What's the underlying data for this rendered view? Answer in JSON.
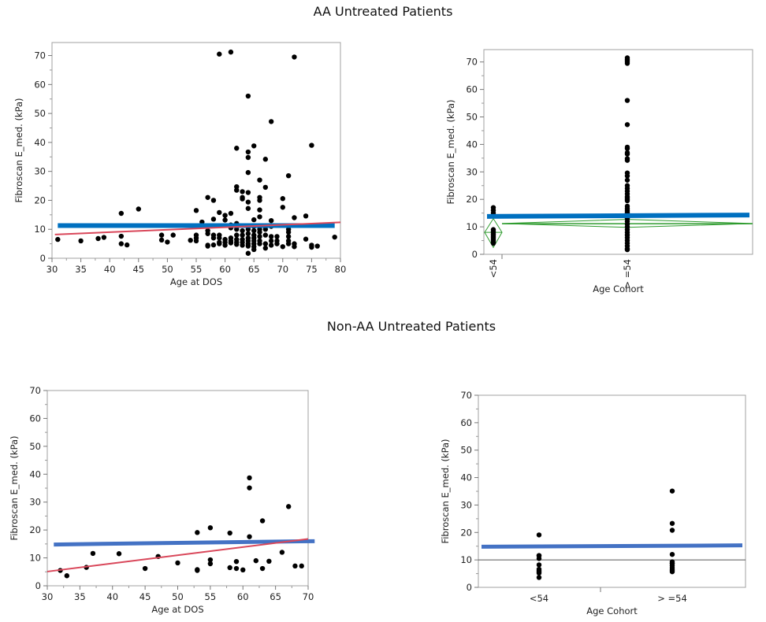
{
  "sections": [
    {
      "title": "AA Untreated Patients"
    },
    {
      "title": "Non-AA Untreated Patients"
    }
  ],
  "colors": {
    "fit_line": "#0070C0",
    "fit_line_b": "#4472C4",
    "regression": "#D9475A",
    "means_diamond": "#2E9B2E",
    "points": "#000000",
    "grid_ref": "#555555"
  },
  "chart_data": [
    {
      "type": "scatter",
      "xlabel": "Age at DOS",
      "ylabel": "Fibroscan E_med. (kPa)",
      "xlim": [
        30,
        80
      ],
      "ylim": [
        0,
        74.5
      ],
      "xticks": [
        30,
        35,
        40,
        45,
        50,
        55,
        60,
        65,
        70,
        75,
        80
      ],
      "yticks": [
        0,
        10,
        20,
        30,
        40,
        50,
        60,
        70
      ],
      "regression_line": {
        "x": [
          30.5,
          80
        ],
        "y": [
          8.2,
          12.4
        ]
      },
      "horizontal_fit": {
        "x": [
          31,
          79
        ],
        "y": [
          11.3,
          11.3
        ]
      },
      "points": [
        [
          31,
          6.5
        ],
        [
          35,
          6
        ],
        [
          38,
          6.8
        ],
        [
          39,
          7.2
        ],
        [
          42,
          15.5
        ],
        [
          42,
          7.6
        ],
        [
          42,
          5
        ],
        [
          43,
          4.6
        ],
        [
          45,
          17
        ],
        [
          49,
          8
        ],
        [
          49,
          6.3
        ],
        [
          50,
          5.6
        ],
        [
          51,
          8
        ],
        [
          54,
          6.2
        ],
        [
          55,
          16.5
        ],
        [
          55,
          8
        ],
        [
          55,
          7
        ],
        [
          55,
          6
        ],
        [
          56,
          12.5
        ],
        [
          57,
          21
        ],
        [
          57,
          9.5
        ],
        [
          57,
          8.5
        ],
        [
          57,
          4.5
        ],
        [
          57,
          4.2
        ],
        [
          58,
          20
        ],
        [
          58,
          13.5
        ],
        [
          58,
          8
        ],
        [
          58,
          7
        ],
        [
          58,
          4.6
        ],
        [
          59,
          70.5
        ],
        [
          59,
          15.8
        ],
        [
          59,
          8
        ],
        [
          59,
          7
        ],
        [
          59,
          5.5
        ],
        [
          59,
          5
        ],
        [
          60,
          14.8
        ],
        [
          60,
          13.2
        ],
        [
          60,
          6.5
        ],
        [
          60,
          5.5
        ],
        [
          60,
          4.5
        ],
        [
          61,
          71.2
        ],
        [
          61,
          15.5
        ],
        [
          61,
          11.5
        ],
        [
          61,
          10.5
        ],
        [
          61,
          7
        ],
        [
          61,
          6
        ],
        [
          61,
          5.3
        ],
        [
          62,
          38
        ],
        [
          62,
          24.7
        ],
        [
          62,
          23.5
        ],
        [
          62,
          12
        ],
        [
          62,
          10
        ],
        [
          62,
          8
        ],
        [
          62,
          6.5
        ],
        [
          62,
          5.5
        ],
        [
          62,
          4.8
        ],
        [
          63,
          23
        ],
        [
          63,
          21
        ],
        [
          63,
          20.5
        ],
        [
          63,
          9.5
        ],
        [
          63,
          8
        ],
        [
          63,
          6.5
        ],
        [
          63,
          5.5
        ],
        [
          63,
          4.5
        ],
        [
          64,
          56
        ],
        [
          64,
          36.7
        ],
        [
          64,
          34.8
        ],
        [
          64,
          29.6
        ],
        [
          64,
          22.7
        ],
        [
          64,
          19.4
        ],
        [
          64,
          17.2
        ],
        [
          64,
          10
        ],
        [
          64,
          8.5
        ],
        [
          64,
          7
        ],
        [
          64,
          6
        ],
        [
          64,
          5
        ],
        [
          64,
          4.2
        ],
        [
          64,
          1.7
        ],
        [
          65,
          38.8
        ],
        [
          65,
          13.3
        ],
        [
          65,
          11
        ],
        [
          65,
          9.5
        ],
        [
          65,
          8
        ],
        [
          65,
          7
        ],
        [
          65,
          6
        ],
        [
          65,
          5
        ],
        [
          65,
          4
        ],
        [
          65,
          3
        ],
        [
          66,
          27
        ],
        [
          66,
          21
        ],
        [
          66,
          20
        ],
        [
          66,
          16.7
        ],
        [
          66,
          14.3
        ],
        [
          66,
          10
        ],
        [
          66,
          9
        ],
        [
          66,
          7.5
        ],
        [
          66,
          6
        ],
        [
          66,
          5
        ],
        [
          67,
          34.2
        ],
        [
          67,
          24.5
        ],
        [
          67,
          10
        ],
        [
          67,
          8
        ],
        [
          67,
          5
        ],
        [
          67,
          3.5
        ],
        [
          68,
          47.2
        ],
        [
          68,
          13
        ],
        [
          68,
          11
        ],
        [
          68,
          7.5
        ],
        [
          68,
          6
        ],
        [
          68,
          4.5
        ],
        [
          69,
          7.5
        ],
        [
          69,
          6
        ],
        [
          69,
          5
        ],
        [
          70,
          20.6
        ],
        [
          70,
          17.6
        ],
        [
          70,
          4
        ],
        [
          71,
          28.5
        ],
        [
          71,
          10
        ],
        [
          71,
          9
        ],
        [
          71,
          7.5
        ],
        [
          71,
          6
        ],
        [
          71,
          5
        ],
        [
          72,
          69.5
        ],
        [
          72,
          14
        ],
        [
          72,
          5
        ],
        [
          72,
          4
        ],
        [
          74,
          14.6
        ],
        [
          74,
          6.6
        ],
        [
          75,
          39
        ],
        [
          75,
          4.5
        ],
        [
          75,
          3.8
        ],
        [
          76,
          4.2
        ],
        [
          79,
          7.3
        ]
      ]
    },
    {
      "type": "scatter",
      "xlabel": "Age Cohort",
      "ylabel": "Fibroscan E_med. (kPa)",
      "ylim": [
        0,
        74.5
      ],
      "yticks": [
        0,
        10,
        20,
        30,
        40,
        50,
        60,
        70
      ],
      "categories": [
        "<54",
        "> =54"
      ],
      "category_labels_rotated": true,
      "horizontal_fit": {
        "y": [
          13.8,
          14.3
        ]
      },
      "grand_mean": 11.1,
      "means_diamonds": [
        {
          "mean": 8,
          "lower": 2.5,
          "upper": 13
        },
        {
          "mean": 11.2,
          "lower": 9.8,
          "upper": 12.7
        }
      ],
      "groups": [
        [
          17,
          16,
          15,
          9,
          8.5,
          8,
          7.5,
          7,
          6.5,
          6,
          5.5,
          5,
          4.5,
          4
        ],
        [
          71.5,
          71,
          70.5,
          70,
          69.5,
          56,
          47.2,
          39,
          38.5,
          37,
          36.5,
          34.8,
          34.2,
          29.6,
          28.5,
          27,
          25,
          24,
          23,
          22,
          21,
          20.5,
          20,
          19.5,
          17.5,
          16.7,
          16,
          15.5,
          15,
          14.3,
          13.3,
          13,
          12,
          11,
          10,
          9,
          8,
          7,
          6,
          5,
          4,
          3,
          2,
          1.7
        ]
      ]
    },
    {
      "type": "scatter",
      "xlabel": "Age at DOS",
      "ylabel": "Fibroscan E_med. (kPa)",
      "xlim": [
        30,
        70
      ],
      "ylim": [
        0,
        70
      ],
      "xticks": [
        30,
        35,
        40,
        45,
        50,
        55,
        60,
        65,
        70
      ],
      "yticks": [
        0,
        10,
        20,
        30,
        40,
        50,
        60,
        70
      ],
      "regression_line": {
        "x": [
          30,
          70
        ],
        "y": [
          5.1,
          16.8
        ]
      },
      "horizontal_fit": {
        "x": [
          31,
          71
        ],
        "y": [
          14.8,
          16.0
        ]
      },
      "points": [
        [
          32,
          5.5
        ],
        [
          33,
          3.6
        ],
        [
          36,
          6.6
        ],
        [
          37,
          11.6
        ],
        [
          41,
          11.5
        ],
        [
          45,
          6.2
        ],
        [
          47,
          10.5
        ],
        [
          50,
          8.2
        ],
        [
          53,
          19.1
        ],
        [
          53,
          5.8
        ],
        [
          53,
          5.5
        ],
        [
          55,
          20.8
        ],
        [
          55,
          9.3
        ],
        [
          55,
          7.9
        ],
        [
          58,
          18.9
        ],
        [
          58,
          6.5
        ],
        [
          59,
          8.7
        ],
        [
          59,
          6.2
        ],
        [
          60,
          5.7
        ],
        [
          61,
          38.7
        ],
        [
          61,
          35.1
        ],
        [
          61,
          17.6
        ],
        [
          62,
          9
        ],
        [
          63,
          23.3
        ],
        [
          63,
          6.2
        ],
        [
          64,
          8.8
        ],
        [
          66,
          12
        ],
        [
          67,
          28.4
        ],
        [
          68,
          7.1
        ],
        [
          69,
          7.1
        ]
      ]
    },
    {
      "type": "scatter",
      "xlabel": "Age Cohort",
      "ylabel": "Fibroscan E_med. (kPa)",
      "ylim": [
        0,
        70
      ],
      "yticks": [
        0,
        10,
        20,
        30,
        40,
        50,
        60,
        70
      ],
      "categories": [
        "<54",
        "> =54"
      ],
      "category_labels_rotated": false,
      "horizontal_fit": {
        "y": [
          14.8,
          15.3
        ]
      },
      "reference_line": 10,
      "groups": [
        [
          19.1,
          11.6,
          11.5,
          10.5,
          8.2,
          6.6,
          6.2,
          5.8,
          5.5,
          5.2,
          3.6
        ],
        [
          35.1,
          23.3,
          20.8,
          12,
          9.3,
          8.8,
          8.7,
          7.9,
          7.1,
          6.5,
          6.2,
          5.7
        ]
      ]
    }
  ]
}
